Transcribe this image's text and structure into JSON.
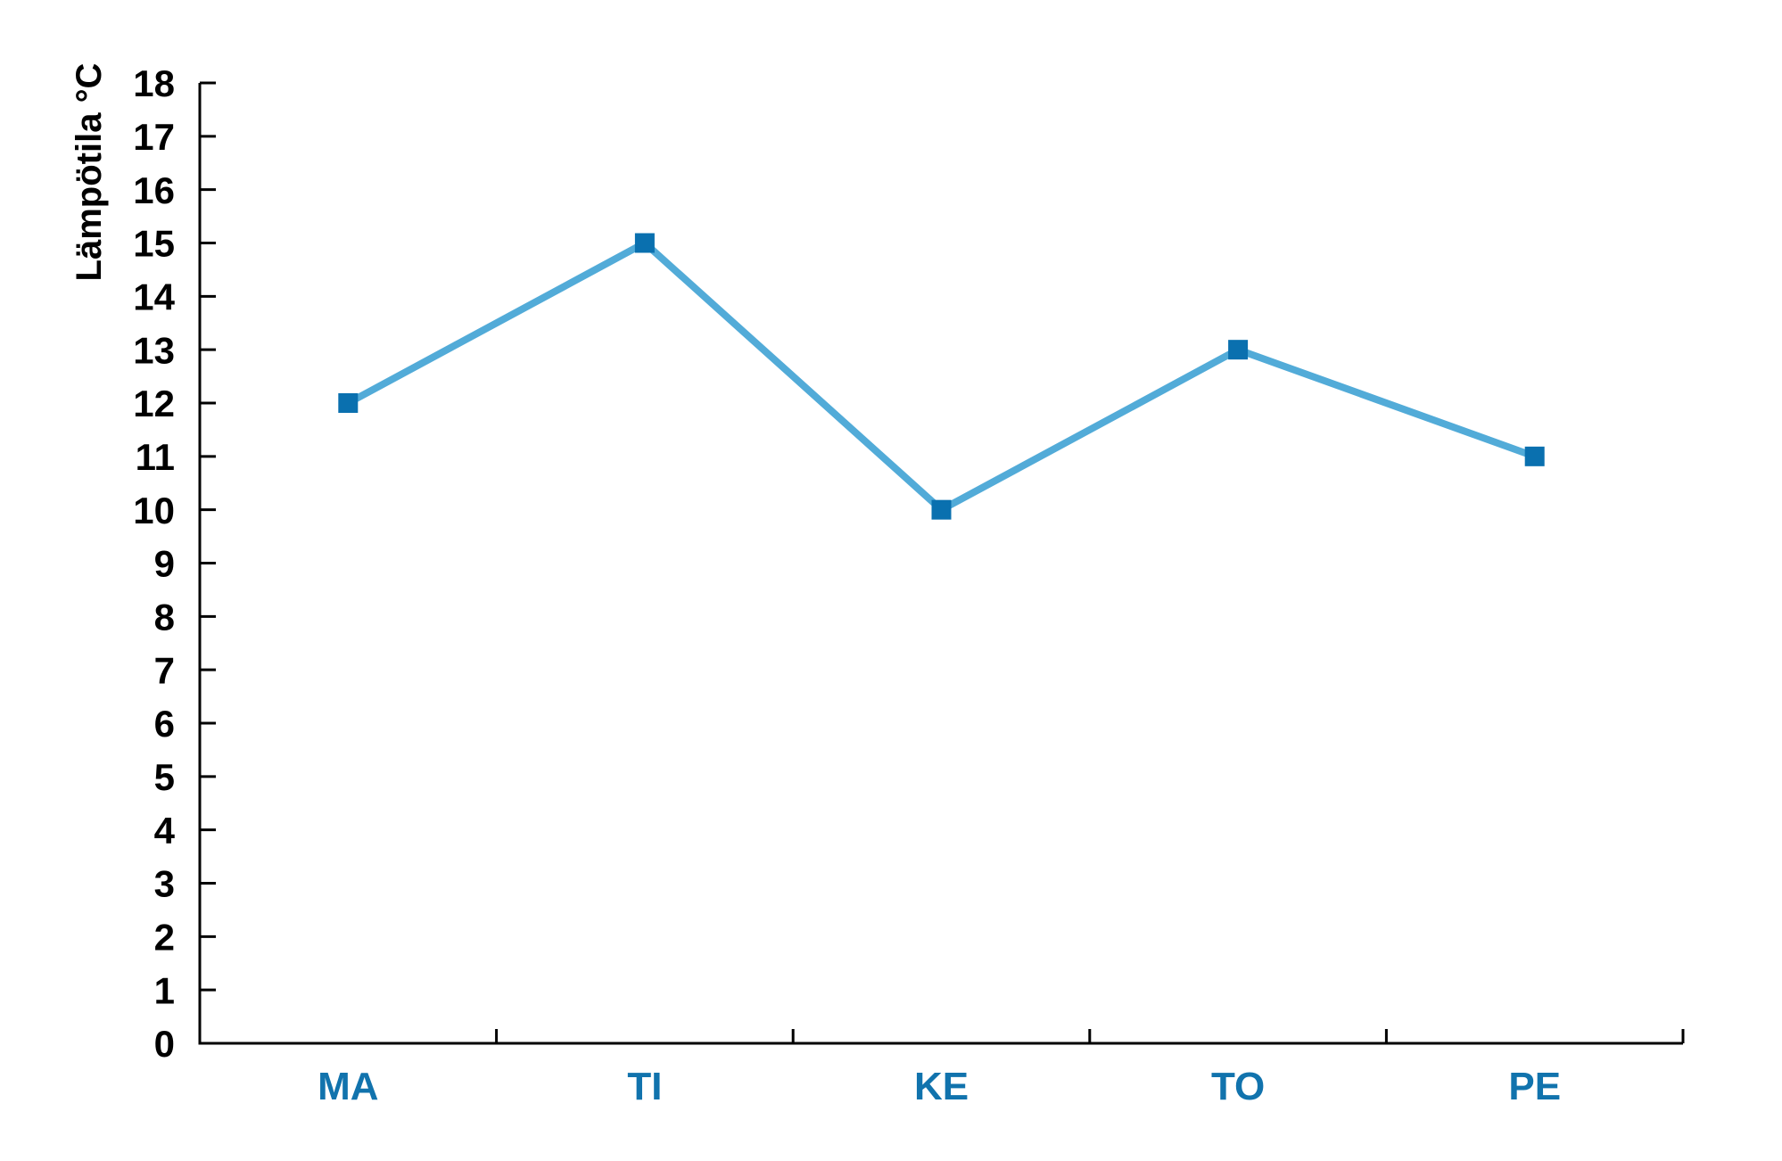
{
  "chart_data": {
    "type": "line",
    "title": "",
    "categories": [
      "MA",
      "TI",
      "KE",
      "TO",
      "PE"
    ],
    "series": [
      {
        "name": "Lämpötila",
        "values": [
          12,
          15,
          10,
          13,
          11
        ]
      }
    ],
    "xlabel": "",
    "ylabel": "Lämpötila °C",
    "ylim": [
      0,
      18
    ],
    "y_tick_step": 1,
    "grid": false,
    "legend_position": "none",
    "marker_shape": "square",
    "colors": {
      "line": "#52ABD8",
      "marker": "#0A70AF",
      "x_tick_label": "#1173AD",
      "y_tick_label": "#000000",
      "axis": "#000000",
      "background": "#FFFFFF"
    }
  }
}
